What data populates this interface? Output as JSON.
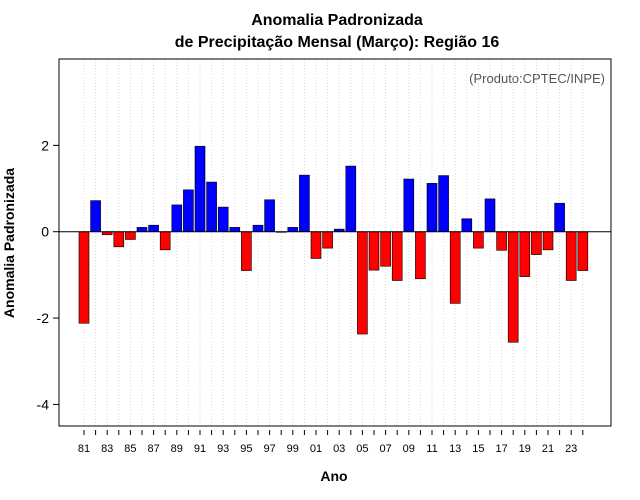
{
  "chart_data": {
    "type": "bar",
    "title": "Anomalia Padronizada",
    "subtitle": "de Precipitação Mensal (Março): Região 16",
    "xlabel": "Ano",
    "ylabel": "Anomalia Padronizada",
    "annotation": "(Produto:CPTEC/INPE)",
    "ylim": [
      -4.5,
      4.0
    ],
    "yticks": [
      -4,
      -2,
      0,
      2
    ],
    "positive_color": "#0000ff",
    "negative_color": "#ff0000",
    "xtick_labels": [
      "81",
      "83",
      "85",
      "87",
      "89",
      "91",
      "93",
      "95",
      "97",
      "99",
      "01",
      "03",
      "05",
      "07",
      "09",
      "11",
      "13",
      "15",
      "17",
      "19",
      "21",
      "23"
    ],
    "categories": [
      "1981",
      "1982",
      "1983",
      "1984",
      "1985",
      "1986",
      "1987",
      "1988",
      "1989",
      "1990",
      "1991",
      "1992",
      "1993",
      "1994",
      "1995",
      "1996",
      "1997",
      "1998",
      "1999",
      "2000",
      "2001",
      "2002",
      "2003",
      "2004",
      "2005",
      "2006",
      "2007",
      "2008",
      "2009",
      "2010",
      "2011",
      "2012",
      "2013",
      "2014",
      "2015",
      "2016",
      "2017",
      "2018",
      "2019",
      "2020",
      "2021",
      "2022",
      "2023",
      "2024"
    ],
    "values": [
      -2.12,
      0.72,
      -0.07,
      -0.35,
      -0.18,
      0.1,
      0.15,
      -0.42,
      0.62,
      0.97,
      1.98,
      1.15,
      0.57,
      0.1,
      -0.9,
      0.15,
      0.74,
      0.0,
      0.1,
      1.31,
      -0.62,
      -0.38,
      0.06,
      1.52,
      -2.37,
      -0.89,
      -0.8,
      -1.13,
      1.22,
      -1.09,
      1.12,
      1.3,
      -1.66,
      0.3,
      -0.38,
      0.76,
      -0.43,
      -2.56,
      -1.04,
      -0.53,
      -0.42,
      0.66,
      -1.13,
      -0.9
    ]
  }
}
